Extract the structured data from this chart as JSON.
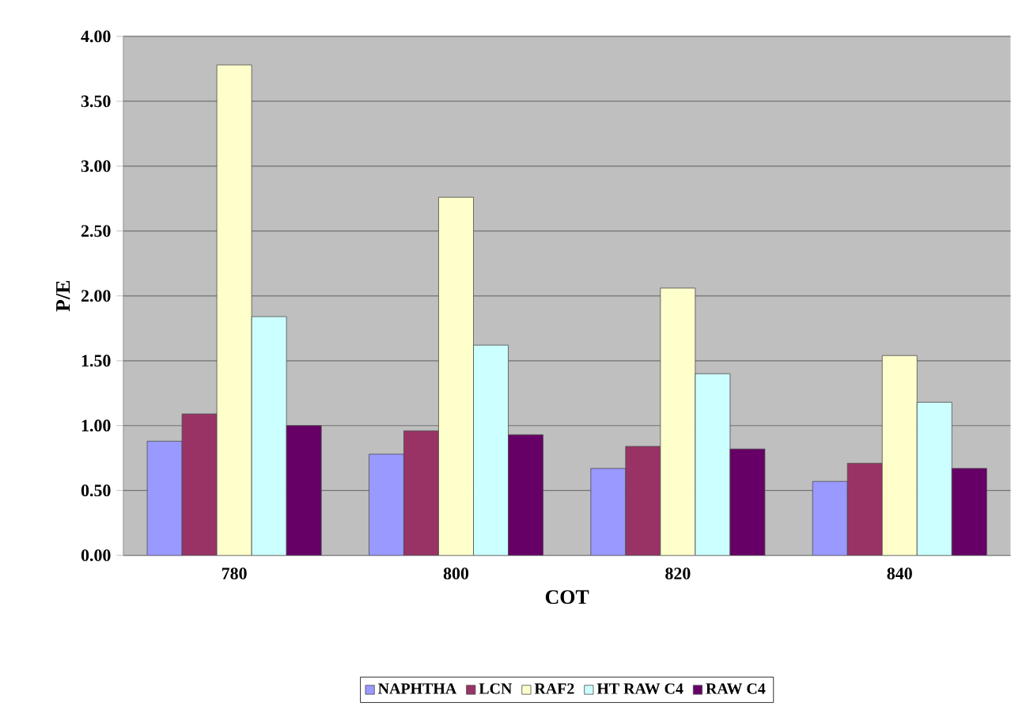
{
  "chart_data": {
    "type": "bar",
    "xlabel": "COT",
    "ylabel": "P/E",
    "categories": [
      "780",
      "800",
      "820",
      "840"
    ],
    "series": [
      {
        "name": "NAPHTHA",
        "color": "#9999ff",
        "values": [
          0.88,
          0.78,
          0.67,
          0.57
        ]
      },
      {
        "name": "LCN",
        "color": "#993366",
        "values": [
          1.09,
          0.96,
          0.84,
          0.71
        ]
      },
      {
        "name": "RAF2",
        "color": "#ffffcc",
        "values": [
          3.78,
          2.76,
          2.06,
          1.54
        ]
      },
      {
        "name": "HT RAW C4",
        "color": "#ccffff",
        "values": [
          1.84,
          1.62,
          1.4,
          1.18
        ]
      },
      {
        "name": "RAW C4",
        "color": "#660066",
        "values": [
          1.0,
          0.93,
          0.82,
          0.67
        ]
      }
    ],
    "ylim": [
      0,
      4
    ],
    "yticks": [
      {
        "value": 0,
        "label": "0.00"
      },
      {
        "value": 0.5,
        "label": "0.50"
      },
      {
        "value": 1,
        "label": "1.00"
      },
      {
        "value": 1.5,
        "label": "1.50"
      },
      {
        "value": 2,
        "label": "2.00"
      },
      {
        "value": 2.5,
        "label": "2.50"
      },
      {
        "value": 3,
        "label": "3.00"
      },
      {
        "value": 3.5,
        "label": "3.50"
      },
      {
        "value": 4,
        "label": "4.00"
      }
    ],
    "grid": "y",
    "legend": "bottom"
  }
}
